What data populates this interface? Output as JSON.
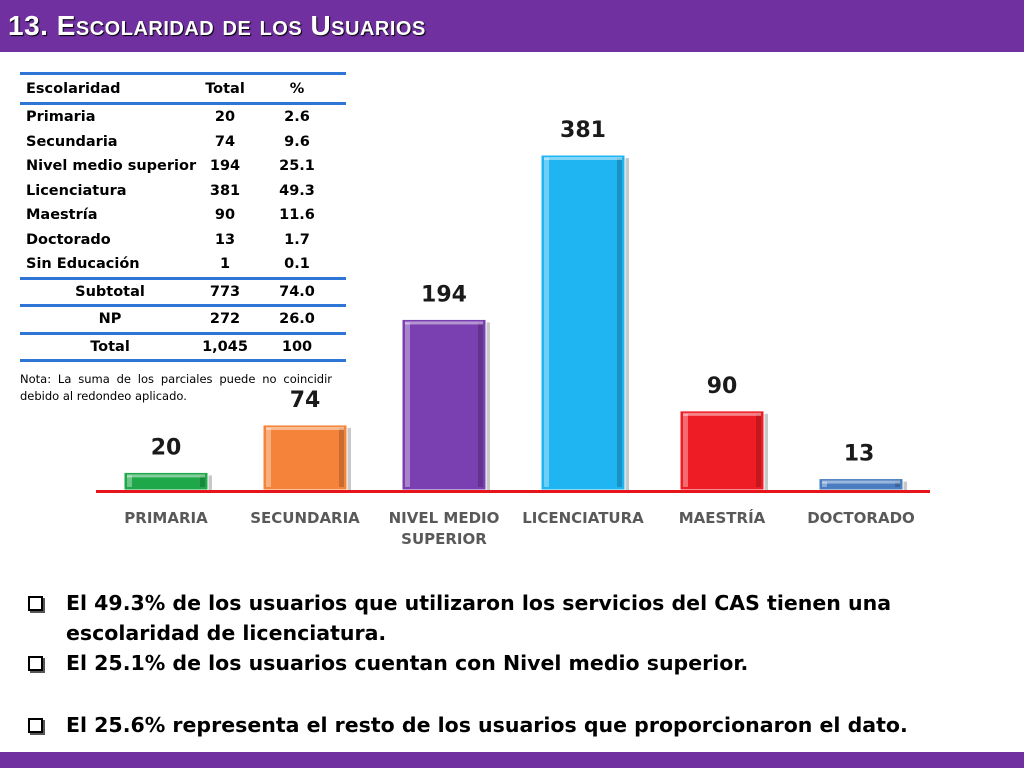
{
  "header": {
    "number": "13.",
    "title": "Escolaridad de los Usuarios"
  },
  "table": {
    "headers": [
      "Escolaridad",
      "Total",
      "%"
    ],
    "rows": [
      [
        "Primaria",
        "20",
        "2.6"
      ],
      [
        "Secundaria",
        "74",
        "9.6"
      ],
      [
        "Nivel medio superior",
        "194",
        "25.1"
      ],
      [
        "Licenciatura",
        "381",
        "49.3"
      ],
      [
        "Maestría",
        "90",
        "11.6"
      ],
      [
        "Doctorado",
        "13",
        "1.7"
      ],
      [
        "Sin Educación",
        "1",
        "0.1"
      ]
    ],
    "subtotal": [
      "Subtotal",
      "773",
      "74.0"
    ],
    "np": [
      "NP",
      "272",
      "26.0"
    ],
    "total": [
      "Total",
      "1,045",
      "100"
    ]
  },
  "note": "Nota: La suma de los parciales puede no coincidir debido al redondeo aplicado.",
  "chart_data": {
    "type": "bar",
    "categories": [
      "PRIMARIA",
      "SECUNDARIA",
      "NIVEL MEDIO SUPERIOR",
      "LICENCIATURA",
      "MAESTRÍA",
      "DOCTORADO"
    ],
    "category_lines": [
      [
        "PRIMARIA"
      ],
      [
        "SECUNDARIA"
      ],
      [
        "NIVEL MEDIO",
        "SUPERIOR"
      ],
      [
        "LICENCIATURA"
      ],
      [
        "MAESTRÍA"
      ],
      [
        "DOCTORADO"
      ]
    ],
    "values": [
      20,
      74,
      194,
      381,
      90,
      13
    ],
    "data_labels": [
      "20",
      "74",
      "194",
      "381",
      "90",
      "13"
    ],
    "colors": [
      "#1fa84a",
      "#f5843a",
      "#7a3fb0",
      "#1fb4f2",
      "#ee1c24",
      "#4a7cc0"
    ],
    "baseline_color": "#e8141c",
    "title": "",
    "xlabel": "",
    "ylabel": "",
    "ylim": [
      0,
      381
    ],
    "grid": false,
    "legend": "none"
  },
  "bullets": [
    "El 49.3% de los usuarios que utilizaron los servicios del CAS tienen una escolaridad de licenciatura.",
    "El 25.1% de los usuarios cuentan con Nivel medio superior.",
    "El  25.6% representa el resto de los usuarios que proporcionaron el dato."
  ],
  "colors": {
    "header": "#7030a0",
    "table_rule": "#2e75d6"
  }
}
